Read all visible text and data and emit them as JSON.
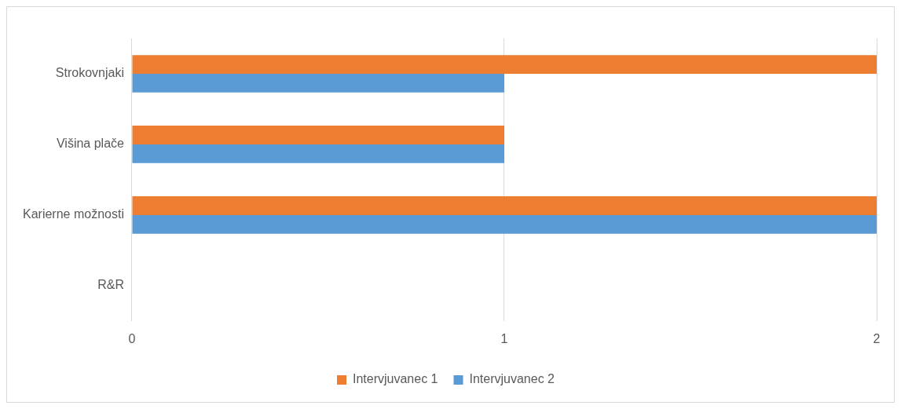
{
  "chart_data": {
    "type": "bar",
    "orientation": "horizontal",
    "categories": [
      "Strokovnjaki",
      "Višina plače",
      "Karierne možnosti",
      "R&R"
    ],
    "series": [
      {
        "name": "Intervjuvanec 1",
        "color": "#ed7d31",
        "values": [
          2,
          1,
          2,
          0
        ]
      },
      {
        "name": "Intervjuvanec 2",
        "color": "#5b9bd5",
        "values": [
          1,
          1,
          2,
          0
        ]
      }
    ],
    "xlim": [
      0,
      2
    ],
    "xticks": [
      0,
      1,
      2
    ],
    "grid": "x",
    "legend": "bottom"
  }
}
